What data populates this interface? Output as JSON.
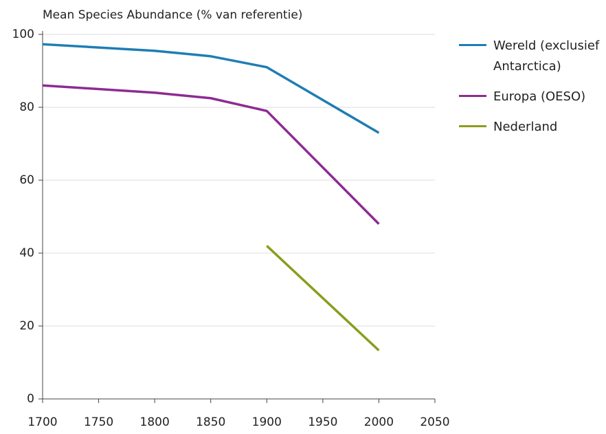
{
  "chart_data": {
    "type": "line",
    "title": "Mean Species Abundance (% van referentie)",
    "x": [
      1700,
      1800,
      1850,
      1900,
      2000
    ],
    "series": [
      {
        "name": "Wereld (exclusief Antarctica)",
        "color": "#1f7db3",
        "values": [
          97.3,
          95.5,
          94,
          91,
          73
        ]
      },
      {
        "name": "Europa (OESO)",
        "color": "#8e2a93",
        "values": [
          86,
          84,
          82.5,
          79,
          48
        ]
      },
      {
        "name": "Nederland",
        "color": "#8c9c1c",
        "values": [
          null,
          null,
          null,
          42,
          13.3
        ]
      }
    ],
    "xlim": [
      1700,
      2050
    ],
    "xticks": [
      1700,
      1750,
      1800,
      1850,
      1900,
      1950,
      2000,
      2050
    ],
    "ylim": [
      0,
      100
    ],
    "yticks": [
      0,
      20,
      40,
      60,
      80,
      100
    ],
    "grid": true,
    "legend": "right"
  }
}
